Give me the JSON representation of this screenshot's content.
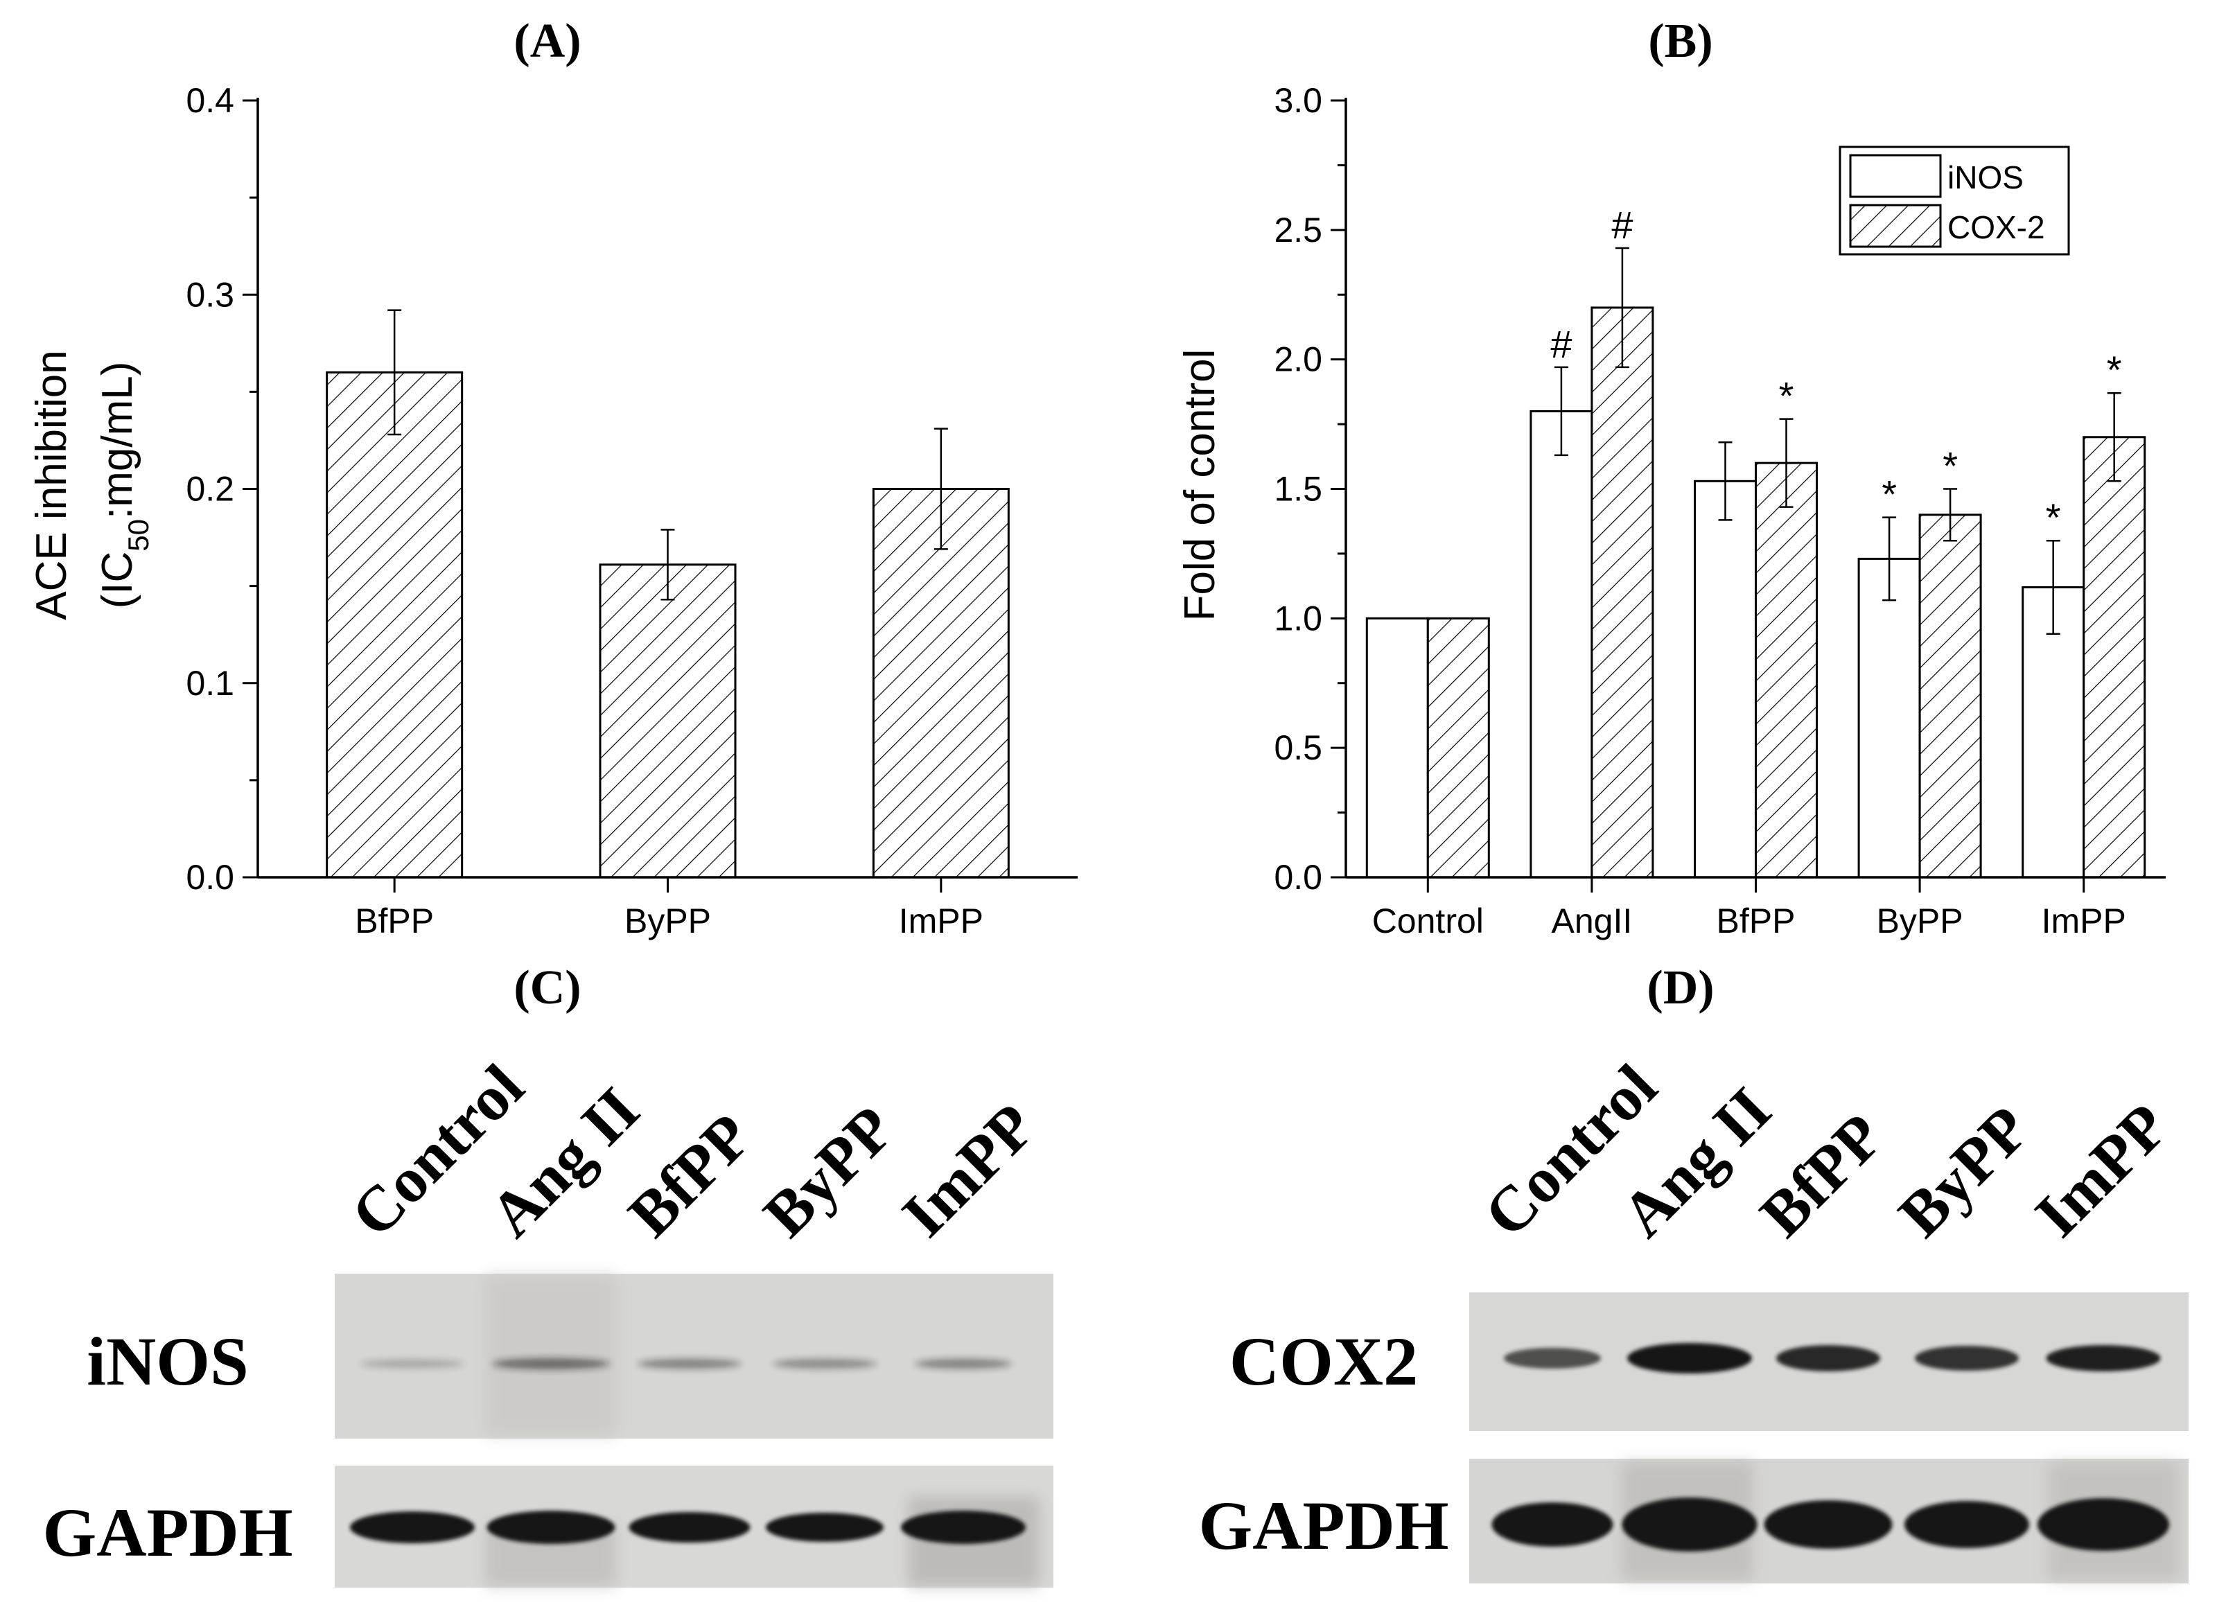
{
  "panels": {
    "A": {
      "label": "(A)"
    },
    "B": {
      "label": "(B)"
    },
    "C": {
      "label": "(C)"
    },
    "D": {
      "label": "(D)"
    }
  },
  "chart_data": [
    {
      "id": "A",
      "type": "bar",
      "title": "(A)",
      "ylabel_line1": "ACE inhibition",
      "ylabel_line2_pre": "(IC",
      "ylabel_line2_sub": "50",
      "ylabel_line2_post": ":mg/mL)",
      "categories": [
        "BfPP",
        "ByPP",
        "ImPP"
      ],
      "values": [
        0.26,
        0.161,
        0.2
      ],
      "errors": [
        0.032,
        0.018,
        0.031
      ],
      "ylim": [
        0,
        0.4
      ],
      "yticks": [
        "0.0",
        "0.1",
        "0.2",
        "0.3",
        "0.4"
      ],
      "pattern": "hatched"
    },
    {
      "id": "B",
      "type": "bar",
      "title": "(B)",
      "ylabel": "Fold of control",
      "categories": [
        "Control",
        "AngII",
        "BfPP",
        "ByPP",
        "ImPP"
      ],
      "ylim": [
        0,
        3.0
      ],
      "yticks": [
        "0.0",
        "0.5",
        "1.0",
        "1.5",
        "2.0",
        "2.5",
        "3.0"
      ],
      "legend_position": "top-right",
      "series": [
        {
          "name": "iNOS",
          "pattern": "open",
          "values": [
            1.0,
            1.8,
            1.53,
            1.23,
            1.12
          ],
          "errors": [
            0,
            0.17,
            0.15,
            0.16,
            0.18
          ],
          "marks": [
            "",
            "#",
            "",
            "*",
            "*"
          ]
        },
        {
          "name": "COX-2",
          "pattern": "hatched",
          "values": [
            1.0,
            2.2,
            1.6,
            1.4,
            1.7
          ],
          "errors": [
            0,
            0.23,
            0.17,
            0.1,
            0.17
          ],
          "marks": [
            "",
            "#",
            "*",
            "*",
            "*"
          ]
        }
      ]
    }
  ],
  "blots": {
    "C": {
      "lanes": [
        "Control",
        "Ang II",
        "BfPP",
        "ByPP",
        "ImPP"
      ],
      "rows": [
        "iNOS",
        "GAPDH"
      ]
    },
    "D": {
      "lanes": [
        "Control",
        "Ang II",
        "BfPP",
        "ByPP",
        "ImPP"
      ],
      "rows": [
        "COX2",
        "GAPDH"
      ]
    }
  }
}
